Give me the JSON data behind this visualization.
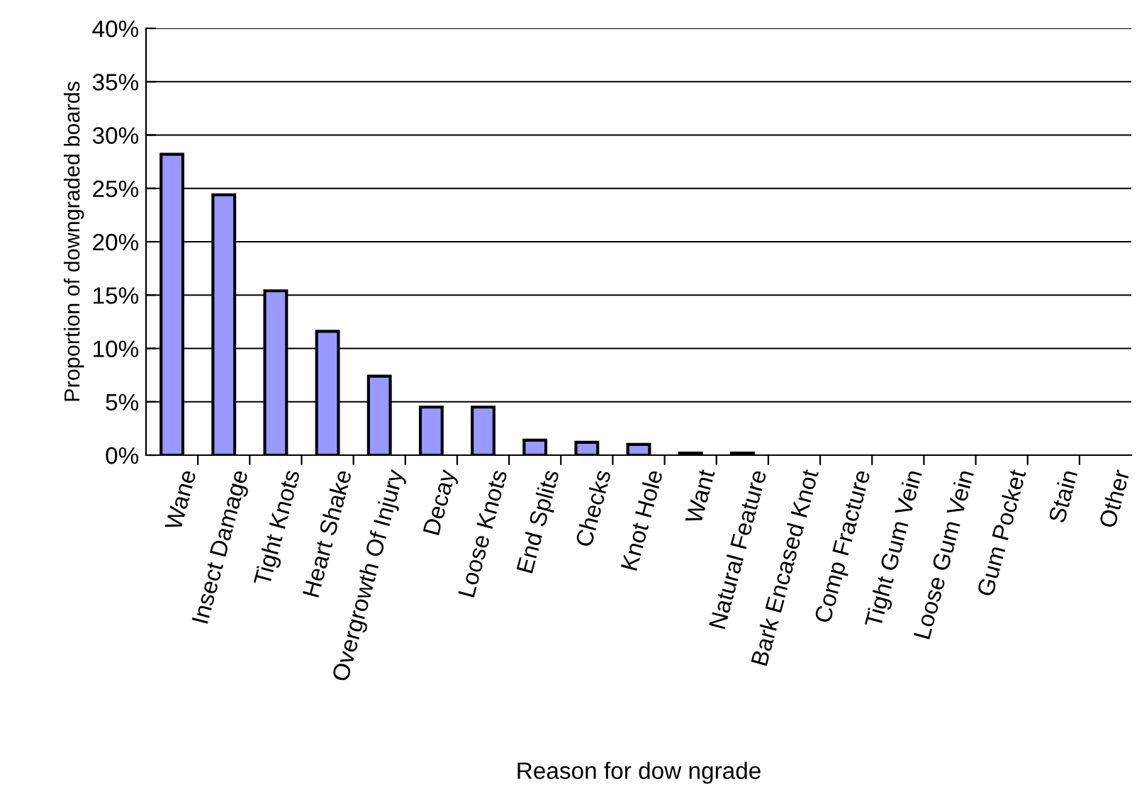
{
  "chart_data": {
    "type": "bar",
    "xlabel": "Reason for dow ngrade",
    "ylabel": "Proportion of downgraded boards",
    "categories": [
      "Wane",
      "Insect Damage",
      "Tight Knots",
      "Heart Shake",
      "Overgrowth Of Injury",
      "Decay",
      "Loose Knots",
      "End Splits",
      "Checks",
      "Knot Hole",
      "Want",
      "Natural Feature",
      "Bark Encased Knot",
      "Comp Fracture",
      "Tight Gum Vein",
      "Loose Gum Vein",
      "Gum Pocket",
      "Stain",
      "Other"
    ],
    "values": [
      28.2,
      24.4,
      15.4,
      11.6,
      7.4,
      4.5,
      4.5,
      1.4,
      1.2,
      1.0,
      0.2,
      0.2,
      0,
      0,
      0,
      0,
      0,
      0,
      0
    ],
    "color": "#9999ff",
    "ylim": [
      0,
      40
    ],
    "yticks": [
      {
        "value": 0,
        "label": "0%"
      },
      {
        "value": 5,
        "label": "5%"
      },
      {
        "value": 10,
        "label": "10%"
      },
      {
        "value": 15,
        "label": "15%"
      },
      {
        "value": 20,
        "label": "20%"
      },
      {
        "value": 25,
        "label": "25%"
      },
      {
        "value": 30,
        "label": "30%"
      },
      {
        "value": 35,
        "label": "35%"
      },
      {
        "value": 40,
        "label": "40%"
      }
    ],
    "grid": "y"
  }
}
